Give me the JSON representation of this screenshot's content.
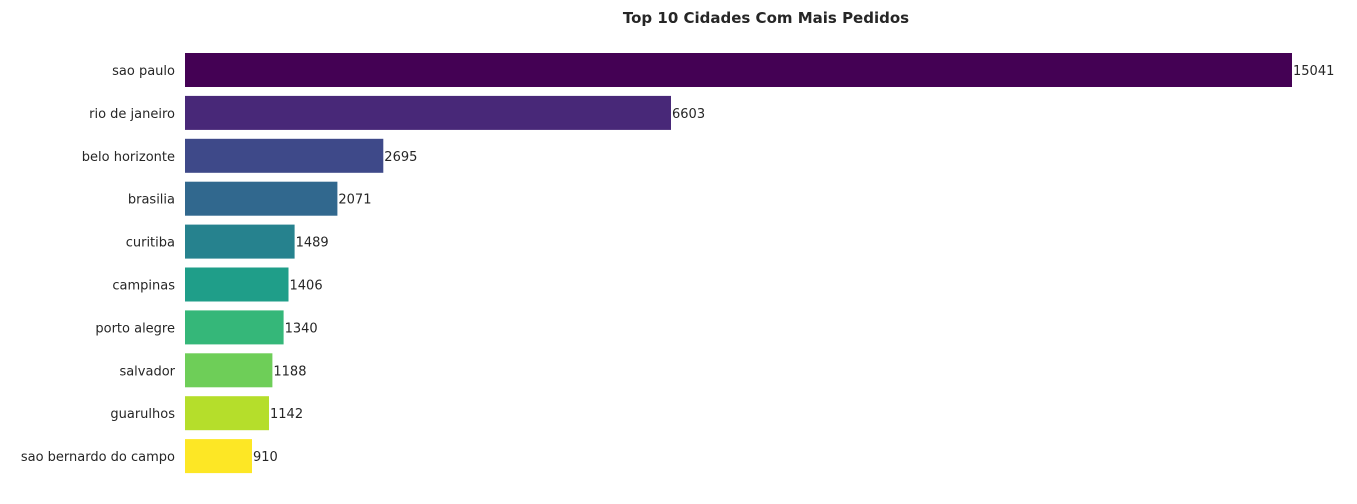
{
  "chart_data": {
    "type": "bar",
    "orientation": "horizontal",
    "title": "Top 10 Cidades Com Mais Pedidos",
    "xlabel": "",
    "ylabel": "",
    "categories": [
      "sao paulo",
      "rio de janeiro",
      "belo horizonte",
      "brasilia",
      "curitiba",
      "campinas",
      "porto alegre",
      "salvador",
      "guarulhos",
      "sao bernardo do campo"
    ],
    "values": [
      15041,
      6603,
      2695,
      2071,
      1489,
      1406,
      1340,
      1188,
      1142,
      910
    ],
    "value_labels": [
      "15041",
      "6603",
      "2695",
      "2071",
      "1489",
      "1406",
      "1340",
      "1188",
      "1142",
      "910"
    ],
    "colors": [
      "#440154",
      "#482878",
      "#3e4989",
      "#31688e",
      "#26828e",
      "#1f9e89",
      "#35b779",
      "#6ece58",
      "#b5de2b",
      "#fde725"
    ],
    "xlim": [
      0,
      15041
    ],
    "grid": false,
    "x_axis_visible": false
  }
}
